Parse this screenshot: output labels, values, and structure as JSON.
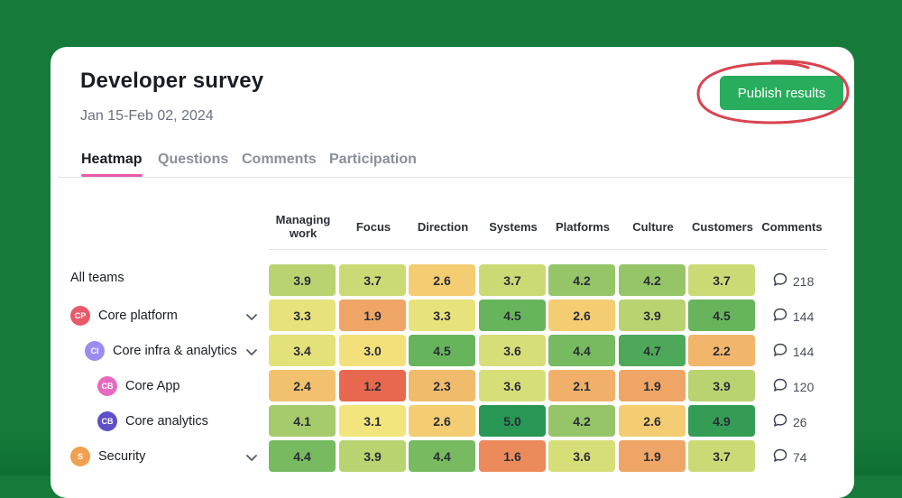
{
  "survey": {
    "title": "Developer survey",
    "date_range": "Jan 15-Feb 02, 2024",
    "publish_label": "Publish results"
  },
  "tabs": [
    {
      "label": "Heatmap",
      "active": true
    },
    {
      "label": "Questions",
      "active": false
    },
    {
      "label": "Comments",
      "active": false
    },
    {
      "label": "Participation",
      "active": false
    }
  ],
  "columns": [
    "Managing work",
    "Focus",
    "Direction",
    "Systems",
    "Platforms",
    "Culture",
    "Customers",
    "Comments"
  ],
  "rows": [
    {
      "label": "All teams",
      "avatar": "",
      "avatar_color": "",
      "expandable": false,
      "values": [
        "3.9",
        "3.7",
        "2.6",
        "3.7",
        "4.2",
        "4.2",
        "3.7"
      ],
      "comments": "218"
    },
    {
      "label": "Core platform",
      "avatar": "CP",
      "avatar_color": "#e8596a",
      "expandable": true,
      "values": [
        "3.3",
        "1.9",
        "3.3",
        "4.5",
        "2.6",
        "3.9",
        "4.5"
      ],
      "comments": "144"
    },
    {
      "label": "Core infra & analytics",
      "avatar": "CI",
      "avatar_color": "#9c8cf0",
      "expandable": true,
      "values": [
        "3.4",
        "3.0",
        "4.5",
        "3.6",
        "4.4",
        "4.7",
        "2.2"
      ],
      "comments": "144"
    },
    {
      "label": "Core App",
      "avatar": "CB",
      "avatar_color": "#e66bc0",
      "expandable": false,
      "values": [
        "2.4",
        "1.2",
        "2.3",
        "3.6",
        "2.1",
        "1.9",
        "3.9"
      ],
      "comments": "120"
    },
    {
      "label": "Core analytics",
      "avatar": "CB",
      "avatar_color": "#5e4fc9",
      "expandable": false,
      "values": [
        "4.1",
        "3.1",
        "2.6",
        "5.0",
        "4.2",
        "2.6",
        "4.9"
      ],
      "comments": "26"
    },
    {
      "label": "Security",
      "avatar": "S",
      "avatar_color": "#f0a050",
      "expandable": true,
      "values": [
        "4.4",
        "3.9",
        "4.4",
        "1.6",
        "3.6",
        "1.9",
        "3.7"
      ],
      "comments": "74"
    }
  ],
  "colors": {
    "accent": "#28ad5c",
    "tab_underline": "#e75aa7",
    "annotation": "#d9434e"
  }
}
